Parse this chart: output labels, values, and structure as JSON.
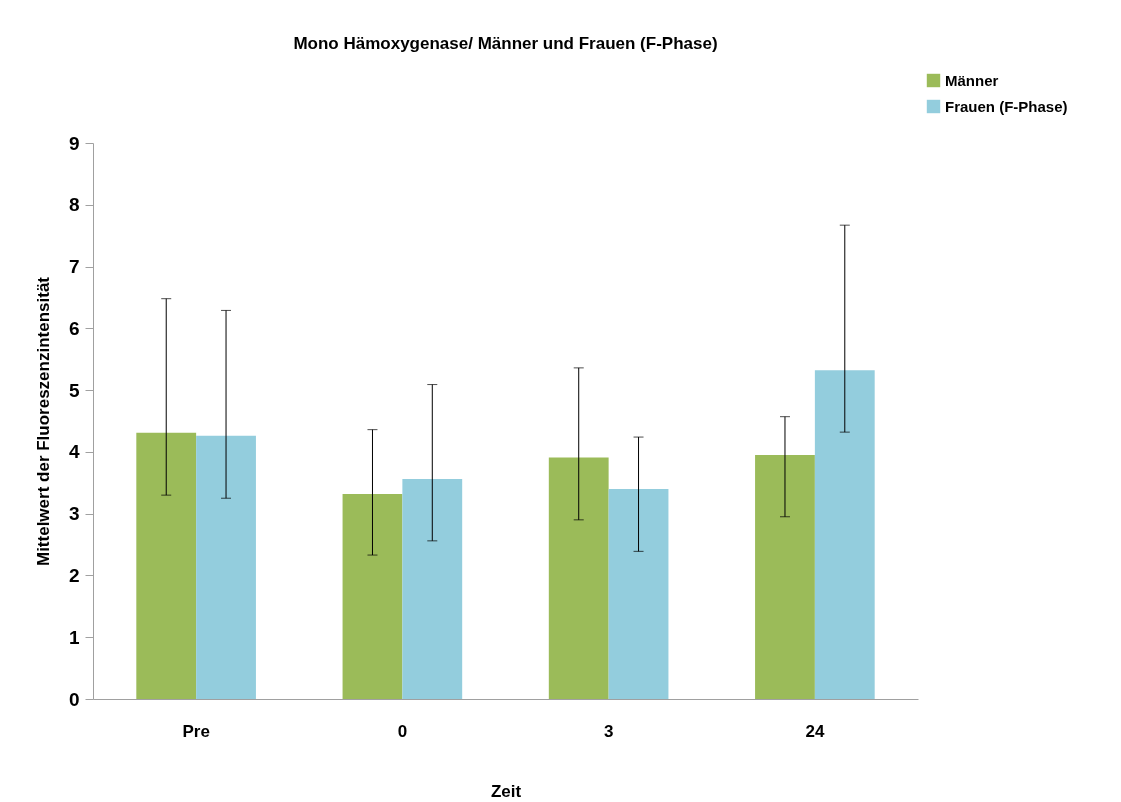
{
  "chart_data": {
    "type": "bar",
    "title": "Mono Hämoxygenase/ Männer und Frauen (F-Phase)",
    "xlabel": "Zeit",
    "ylabel": "Mittelwert der Fluoreszenzintensität",
    "categories": [
      "Pre",
      "0",
      "3",
      "24"
    ],
    "series": [
      {
        "name": "Männer",
        "color": "#9bbb59",
        "values": [
          4.31,
          3.32,
          3.91,
          3.95
        ],
        "errors": [
          [
            3.3,
            6.48
          ],
          [
            2.33,
            4.36
          ],
          [
            2.9,
            5.36
          ],
          [
            2.95,
            4.57
          ]
        ]
      },
      {
        "name": "Frauen (F-Phase)",
        "color": "#93cddd",
        "values": [
          4.26,
          3.56,
          3.4,
          5.32
        ],
        "errors": [
          [
            3.25,
            6.29
          ],
          [
            2.56,
            5.09
          ],
          [
            2.39,
            4.24
          ],
          [
            4.32,
            7.67
          ]
        ]
      }
    ],
    "ylim": [
      0,
      9
    ],
    "yticks": [
      0,
      1,
      2,
      3,
      4,
      5,
      6,
      7,
      8,
      9
    ],
    "grid": false,
    "legend": "top right"
  }
}
